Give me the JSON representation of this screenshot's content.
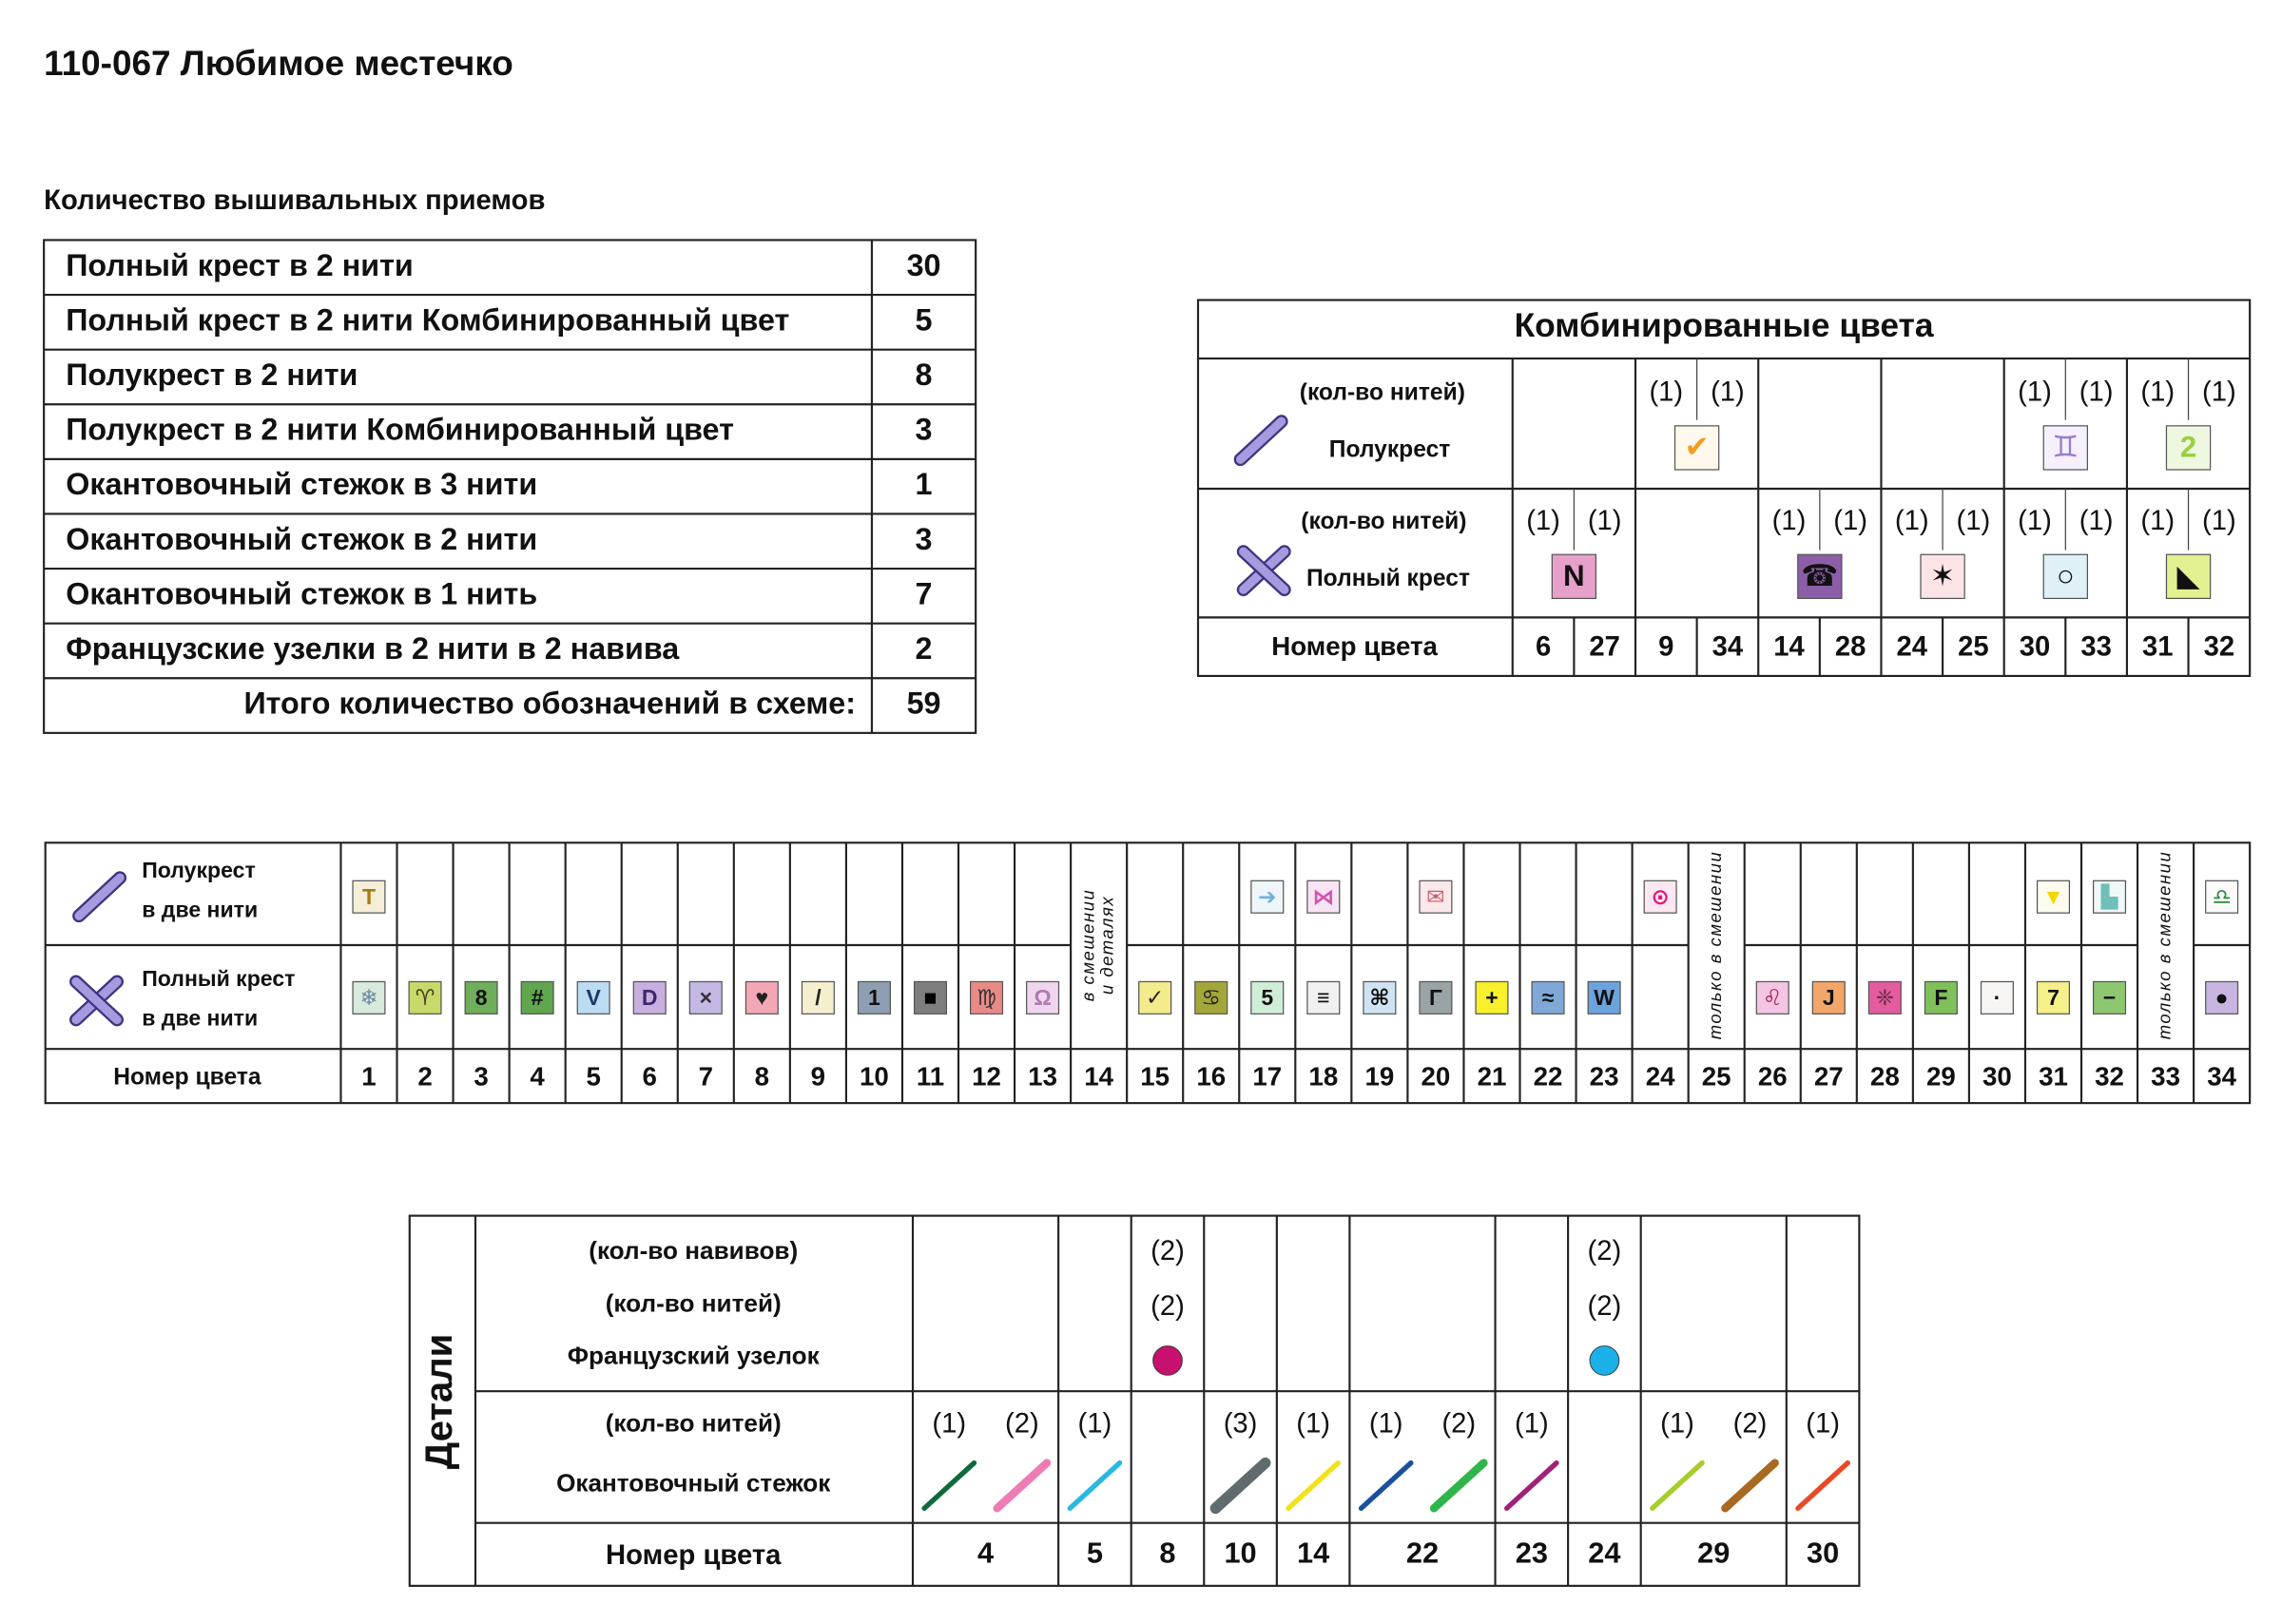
{
  "title": "110-067  Любимое местечко",
  "counts": {
    "heading": "Количество вышивальных приемов",
    "rows": [
      {
        "label": "Полный крест в 2 нити",
        "value": 30
      },
      {
        "label": "Полный крест в 2 нити Комбинированный цвет",
        "value": 5
      },
      {
        "label": "Полукрест в 2 нити",
        "value": 8
      },
      {
        "label": "Полукрест в 2 нити Комбинированный цвет",
        "value": 3
      },
      {
        "label": "Окантовочный стежок в 3 нити",
        "value": 1
      },
      {
        "label": "Окантовочный стежок в 2 нити",
        "value": 3
      },
      {
        "label": "Окантовочный стежок в 1 нить",
        "value": 7
      },
      {
        "label": "Французские узелки в 2 нити в 2 навива",
        "value": 2
      }
    ],
    "total": {
      "label": "Итого количество обозначений в схеме:",
      "value": 59
    }
  },
  "combined": {
    "title": "Комбинированные цвета",
    "half_label": {
      "threads": "(кол-во нитей)",
      "name": "Полукрест"
    },
    "full_label": {
      "threads": "(кол-во нитей)",
      "name": "Полный крест"
    },
    "number_label": "Номер цвета",
    "pairs": [
      {
        "numbers": [
          6,
          27
        ],
        "half": null,
        "full": {
          "threads": [
            "(1)",
            "(1)"
          ],
          "symbol": "N",
          "bg": "#e7a0ca",
          "fg": "#111"
        }
      },
      {
        "numbers": [
          9,
          34
        ],
        "half": {
          "threads": [
            "(1)",
            "(1)"
          ],
          "symbol": "✔",
          "bg": "#fff8ec",
          "fg": "#f0a020"
        },
        "full": null
      },
      {
        "numbers": [
          14,
          28
        ],
        "half": null,
        "full": {
          "threads": [
            "(1)",
            "(1)"
          ],
          "symbol": "☎",
          "bg": "#8d5ea8",
          "fg": "#111"
        }
      },
      {
        "numbers": [
          24,
          25
        ],
        "half": null,
        "full": {
          "threads": [
            "(1)",
            "(1)"
          ],
          "symbol": "✶",
          "bg": "#fbe3e6",
          "fg": "#111"
        }
      },
      {
        "numbers": [
          30,
          33
        ],
        "half": {
          "threads": [
            "(1)",
            "(1)"
          ],
          "symbol": "♊",
          "bg": "#f5f0fb",
          "fg": "#9a7ad0"
        },
        "full": {
          "threads": [
            "(1)",
            "(1)"
          ],
          "symbol": "○",
          "bg": "#dff0f6",
          "fg": "#111"
        }
      },
      {
        "numbers": [
          31,
          32
        ],
        "half": {
          "threads": [
            "(1)",
            "(1)"
          ],
          "symbol": "2",
          "bg": "#eef7e0",
          "fg": "#9ad040"
        },
        "full": {
          "threads": [
            "(1)",
            "(1)"
          ],
          "symbol": "◣",
          "bg": "#e4ef90",
          "fg": "#111"
        }
      }
    ]
  },
  "key": {
    "half_label": [
      "Полукрест",
      "в две нити"
    ],
    "full_label": [
      "Полный крест",
      "в две нити"
    ],
    "number_label": "Номер цвета",
    "colors": [
      {
        "number": 1,
        "half": {
          "symbol": "T",
          "bg": "#f5eed8",
          "fg": "#a87a10"
        },
        "full": {
          "symbol": "❄",
          "bg": "#d8eadb",
          "fg": "#6a8aa0"
        }
      },
      {
        "number": 2,
        "half": null,
        "full": {
          "symbol": "♈",
          "bg": "#c8d96a",
          "fg": "#4a3a20"
        }
      },
      {
        "number": 3,
        "half": null,
        "full": {
          "symbol": "8",
          "bg": "#6fae5a",
          "fg": "#111"
        }
      },
      {
        "number": 4,
        "half": null,
        "full": {
          "symbol": "#",
          "bg": "#5fa64f",
          "fg": "#111"
        }
      },
      {
        "number": 5,
        "half": null,
        "full": {
          "symbol": "V",
          "bg": "#bcdcf2",
          "fg": "#1a3a6a"
        }
      },
      {
        "number": 6,
        "half": null,
        "full": {
          "symbol": "D",
          "bg": "#c9aee0",
          "fg": "#3a2a6a"
        }
      },
      {
        "number": 7,
        "half": null,
        "full": {
          "symbol": "×",
          "bg": "#c5b8e4",
          "fg": "#333"
        }
      },
      {
        "number": 8,
        "half": null,
        "full": {
          "symbol": "♥",
          "bg": "#f3a7b6",
          "fg": "#222"
        }
      },
      {
        "number": 9,
        "half": null,
        "full": {
          "symbol": "/",
          "bg": "#f4efcf",
          "fg": "#222"
        }
      },
      {
        "number": 10,
        "half": null,
        "full": {
          "symbol": "1",
          "bg": "#8e9fb4",
          "fg": "#111"
        }
      },
      {
        "number": 11,
        "half": null,
        "full": {
          "symbol": "■",
          "bg": "#7e7e7e",
          "fg": "#000"
        }
      },
      {
        "number": 12,
        "half": null,
        "full": {
          "symbol": "♍",
          "bg": "#e98a86",
          "fg": "#333"
        }
      },
      {
        "number": 13,
        "half": null,
        "full": {
          "symbol": "Ω",
          "bg": "#efd6ee",
          "fg": "#b07ab0"
        }
      },
      {
        "number": 14,
        "note": [
          "в смешении",
          "и деталях"
        ]
      },
      {
        "number": 15,
        "half": null,
        "full": {
          "symbol": "✓",
          "bg": "#f4ec8c",
          "fg": "#222"
        }
      },
      {
        "number": 16,
        "half": null,
        "full": {
          "symbol": "♋",
          "bg": "#a3a73a",
          "fg": "#222"
        }
      },
      {
        "number": 17,
        "half": {
          "symbol": "➔",
          "bg": "#eef6fb",
          "fg": "#6ab0e0"
        },
        "full": {
          "symbol": "5",
          "bg": "#cfeed8",
          "fg": "#111"
        }
      },
      {
        "number": 18,
        "half": {
          "symbol": "⋈",
          "bg": "#f9e4f4",
          "fg": "#d254b0"
        },
        "full": {
          "symbol": "≡",
          "bg": "#f0f0f0",
          "fg": "#111"
        }
      },
      {
        "number": 19,
        "half": null,
        "full": {
          "symbol": "⌘",
          "bg": "#cfe3f3",
          "fg": "#111"
        }
      },
      {
        "number": 20,
        "half": {
          "symbol": "✉",
          "bg": "#fbe8ea",
          "fg": "#d05a6a"
        },
        "full": {
          "symbol": "Γ",
          "bg": "#9aa3a6",
          "fg": "#111"
        }
      },
      {
        "number": 21,
        "half": null,
        "full": {
          "symbol": "+",
          "bg": "#f7f02a",
          "fg": "#111"
        }
      },
      {
        "number": 22,
        "half": null,
        "full": {
          "symbol": "≈",
          "bg": "#7fa8d8",
          "fg": "#111"
        }
      },
      {
        "number": 23,
        "half": null,
        "full": {
          "symbol": "W",
          "bg": "#6ba3dd",
          "fg": "#111"
        }
      },
      {
        "number": 24,
        "half": {
          "symbol": "⊙",
          "bg": "#fde7f1",
          "fg": "#e01a7a"
        },
        "full": null
      },
      {
        "number": 25,
        "note": [
          "только в смешении"
        ]
      },
      {
        "number": 26,
        "half": null,
        "full": {
          "symbol": "♌",
          "bg": "#f4c5e2",
          "fg": "#a02060"
        }
      },
      {
        "number": 27,
        "half": null,
        "full": {
          "symbol": "J",
          "bg": "#f4a66a",
          "fg": "#111"
        }
      },
      {
        "number": 28,
        "half": null,
        "full": {
          "symbol": "❈",
          "bg": "#e35c9d",
          "fg": "#6a2a4a"
        }
      },
      {
        "number": 29,
        "half": null,
        "full": {
          "symbol": "F",
          "bg": "#7fc05a",
          "fg": "#111"
        }
      },
      {
        "number": 30,
        "half": null,
        "full": {
          "symbol": "·",
          "bg": "#f7f4f4",
          "fg": "#111"
        }
      },
      {
        "number": 31,
        "half": {
          "symbol": "▼",
          "bg": "#fdfbf0",
          "fg": "#f5d800"
        },
        "full": {
          "symbol": "7",
          "bg": "#f6f08a",
          "fg": "#111"
        }
      },
      {
        "number": 32,
        "half": {
          "symbol": "▙",
          "bg": "#f0f7f7",
          "fg": "#6fc0b8"
        },
        "full": {
          "symbol": "−",
          "bg": "#8dc870",
          "fg": "#111"
        }
      },
      {
        "number": 33,
        "note": [
          "только в смешении"
        ]
      },
      {
        "number": 34,
        "half": {
          "symbol": "♎",
          "bg": "#fafafa",
          "fg": "#2a8a3a"
        },
        "full": {
          "symbol": "●",
          "bg": "#c8b5e2",
          "fg": "#111"
        }
      }
    ]
  },
  "details": {
    "title": "Детали",
    "knot_labels": [
      "(кол-во навивов)",
      "(кол-во нитей)",
      "Французский узелок"
    ],
    "stitch_labels": [
      "(кол-во нитей)",
      "Окантовочный стежок"
    ],
    "number_label": "Номер цвета",
    "columns": [
      {
        "number": 4,
        "knot": null,
        "stitches": [
          {
            "threads": "(1)",
            "color": "#0d6b3c"
          },
          {
            "threads": "(2)",
            "color": "#ee7cb4"
          }
        ]
      },
      {
        "number": 5,
        "knot": null,
        "stitches": [
          {
            "threads": "(1)",
            "color": "#2ab8e0"
          }
        ]
      },
      {
        "number": 8,
        "knot": {
          "wraps": "(2)",
          "threads": "(2)",
          "color": "#c8106e"
        },
        "stitches": []
      },
      {
        "number": 10,
        "knot": null,
        "stitches": [
          {
            "threads": "(3)",
            "color": "#5f6b6e"
          }
        ]
      },
      {
        "number": 14,
        "knot": null,
        "stitches": [
          {
            "threads": "(1)",
            "color": "#f2e21a"
          }
        ]
      },
      {
        "number": 22,
        "knot": null,
        "stitches": [
          {
            "threads": "(1)",
            "color": "#1b4fa0"
          },
          {
            "threads": "(2)",
            "color": "#2fb54a"
          }
        ]
      },
      {
        "number": 23,
        "knot": null,
        "stitches": [
          {
            "threads": "(1)",
            "color": "#a0207a"
          }
        ]
      },
      {
        "number": 24,
        "knot": {
          "wraps": "(2)",
          "threads": "(2)",
          "color": "#1cb0e8"
        },
        "stitches": []
      },
      {
        "number": 29,
        "knot": null,
        "stitches": [
          {
            "threads": "(1)",
            "color": "#a8cc2a"
          },
          {
            "threads": "(2)",
            "color": "#a86a20"
          }
        ]
      },
      {
        "number": 30,
        "knot": null,
        "stitches": [
          {
            "threads": "(1)",
            "color": "#e84a25"
          }
        ]
      }
    ]
  }
}
